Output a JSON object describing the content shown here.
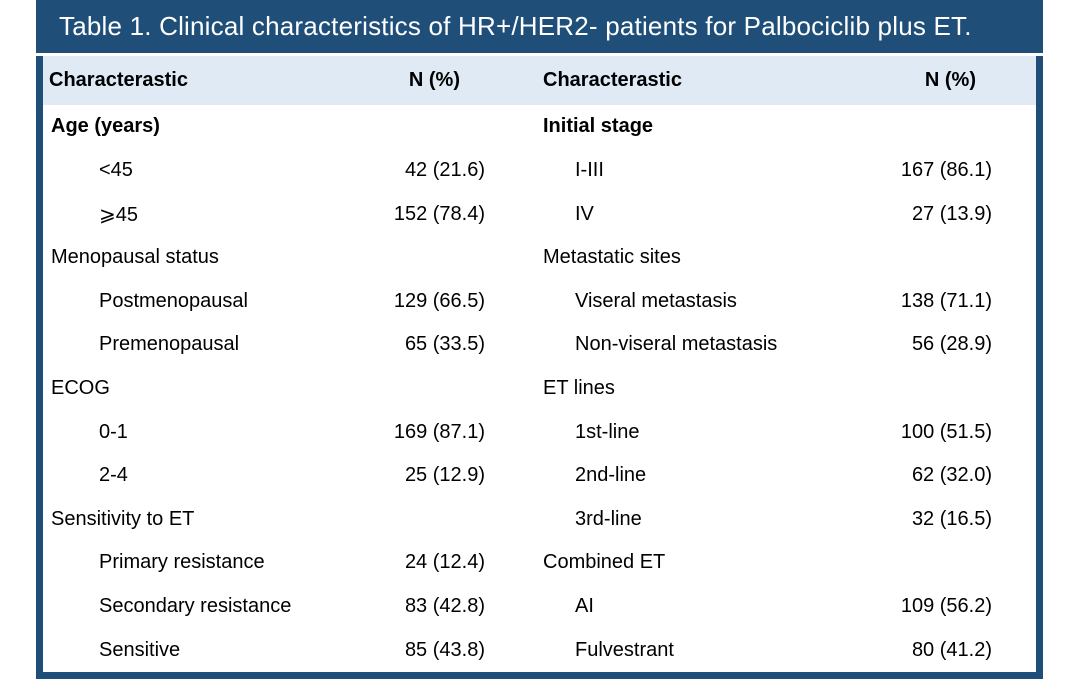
{
  "title": "Table 1. Clinical characteristics of HR+/HER2- patients for Palbociclib plus ET.",
  "colors": {
    "navy": "#1F4E79",
    "header_bg": "#DFEAF5",
    "body_bg": "#FFFFFF",
    "title_text": "#FFFFFF",
    "text": "#000000"
  },
  "header": {
    "characteristic_left": "Characterastic",
    "n_pct_left": "N (%)",
    "characteristic_right": "Characterastic",
    "n_pct_right": "N (%)"
  },
  "left_rows": [
    {
      "label": "Age (years)",
      "value": "",
      "bold": true,
      "indent": 0
    },
    {
      "label": "<45",
      "value": "42 (21.6)",
      "bold": false,
      "indent": 1
    },
    {
      "label": "⩾45",
      "value": "152 (78.4)",
      "bold": false,
      "indent": 1
    },
    {
      "label": "Menopausal status",
      "value": "",
      "bold": false,
      "indent": 0
    },
    {
      "label": "Postmenopausal",
      "value": "129 (66.5)",
      "bold": false,
      "indent": 1
    },
    {
      "label": "Premenopausal",
      "value": "65 (33.5)",
      "bold": false,
      "indent": 1
    },
    {
      "label": "ECOG",
      "value": "",
      "bold": false,
      "indent": 0
    },
    {
      "label": "0-1",
      "value": "169 (87.1)",
      "bold": false,
      "indent": 1
    },
    {
      "label": "2-4",
      "value": "25 (12.9)",
      "bold": false,
      "indent": 1
    },
    {
      "label": "Sensitivity to ET",
      "value": "",
      "bold": false,
      "indent": 0
    },
    {
      "label": "Primary resistance",
      "value": "24 (12.4)",
      "bold": false,
      "indent": 1
    },
    {
      "label": "Secondary resistance",
      "value": "83 (42.8)",
      "bold": false,
      "indent": 1
    },
    {
      "label": "Sensitive",
      "value": "85 (43.8)",
      "bold": false,
      "indent": 1
    }
  ],
  "right_rows": [
    {
      "label": "Initial stage",
      "value": "",
      "bold": true,
      "indent": 0
    },
    {
      "label": "I-III",
      "value": "167 (86.1)",
      "bold": false,
      "indent": 1
    },
    {
      "label": "IV",
      "value": "27 (13.9)",
      "bold": false,
      "indent": 1
    },
    {
      "label": "Metastatic sites",
      "value": "",
      "bold": false,
      "indent": 0
    },
    {
      "label": "Viseral metastasis",
      "value": "138 (71.1)",
      "bold": false,
      "indent": 1
    },
    {
      "label": "Non-viseral metastasis",
      "value": "56 (28.9)",
      "bold": false,
      "indent": 1
    },
    {
      "label": "ET lines",
      "value": "",
      "bold": false,
      "indent": 0
    },
    {
      "label": "1st-line",
      "value": "100 (51.5)",
      "bold": false,
      "indent": 1
    },
    {
      "label": "2nd-line",
      "value": "62 (32.0)",
      "bold": false,
      "indent": 1
    },
    {
      "label": "3rd-line",
      "value": "32 (16.5)",
      "bold": false,
      "indent": 1
    },
    {
      "label": "Combined ET",
      "value": "",
      "bold": false,
      "indent": 0
    },
    {
      "label": "AI",
      "value": "109 (56.2)",
      "bold": false,
      "indent": 1
    },
    {
      "label": "Fulvestrant",
      "value": "80 (41.2)",
      "bold": false,
      "indent": 1
    }
  ]
}
